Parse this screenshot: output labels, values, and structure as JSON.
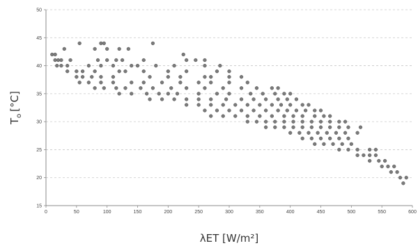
{
  "chart_data": {
    "type": "scatter",
    "title": "",
    "xlabel": "λET [W/m²]",
    "ylabel": "T",
    "ylabel_subscript": "o",
    "ylabel_unit": "[°C]",
    "xlim": [
      0,
      600
    ],
    "ylim": [
      15,
      50
    ],
    "xticks": [
      0,
      50,
      100,
      150,
      200,
      250,
      300,
      350,
      400,
      450,
      500,
      550,
      600
    ],
    "yticks": [
      15,
      20,
      25,
      30,
      35,
      40,
      45,
      50
    ],
    "grid": "horizontal-dashed",
    "colors": {
      "points": "#7a7a7a",
      "point_edge": "#555555",
      "axis": "#888888",
      "grid": "#c8c8c8"
    },
    "series": [
      {
        "points": [
          [
            10,
            42
          ],
          [
            15,
            42
          ],
          [
            30,
            43
          ],
          [
            55,
            44
          ],
          [
            90,
            44
          ],
          [
            95,
            44
          ],
          [
            80,
            43
          ],
          [
            100,
            43
          ],
          [
            120,
            43
          ],
          [
            135,
            43
          ],
          [
            175,
            44
          ],
          [
            225,
            42
          ],
          [
            15,
            41
          ],
          [
            20,
            41
          ],
          [
            25,
            41
          ],
          [
            40,
            41
          ],
          [
            85,
            41
          ],
          [
            100,
            41
          ],
          [
            115,
            41
          ],
          [
            125,
            41
          ],
          [
            160,
            41
          ],
          [
            230,
            41
          ],
          [
            245,
            41
          ],
          [
            260,
            41
          ],
          [
            18,
            40
          ],
          [
            25,
            40
          ],
          [
            35,
            40
          ],
          [
            70,
            40
          ],
          [
            90,
            40
          ],
          [
            110,
            40
          ],
          [
            140,
            40
          ],
          [
            150,
            40
          ],
          [
            180,
            40
          ],
          [
            210,
            40
          ],
          [
            260,
            40
          ],
          [
            285,
            40
          ],
          [
            35,
            39
          ],
          [
            50,
            39
          ],
          [
            60,
            39
          ],
          [
            80,
            39
          ],
          [
            120,
            39
          ],
          [
            130,
            39
          ],
          [
            160,
            39
          ],
          [
            200,
            39
          ],
          [
            230,
            39
          ],
          [
            280,
            39
          ],
          [
            300,
            39
          ],
          [
            50,
            38
          ],
          [
            60,
            38
          ],
          [
            75,
            38
          ],
          [
            90,
            38
          ],
          [
            110,
            38
          ],
          [
            170,
            38
          ],
          [
            200,
            38
          ],
          [
            220,
            38
          ],
          [
            260,
            38
          ],
          [
            270,
            38
          ],
          [
            300,
            38
          ],
          [
            320,
            38
          ],
          [
            55,
            37
          ],
          [
            70,
            37
          ],
          [
            90,
            37
          ],
          [
            110,
            37
          ],
          [
            140,
            37
          ],
          [
            160,
            37
          ],
          [
            190,
            37
          ],
          [
            220,
            37
          ],
          [
            250,
            37
          ],
          [
            270,
            37
          ],
          [
            300,
            37
          ],
          [
            330,
            37
          ],
          [
            80,
            36
          ],
          [
            95,
            36
          ],
          [
            115,
            36
          ],
          [
            130,
            36
          ],
          [
            155,
            36
          ],
          [
            175,
            36
          ],
          [
            205,
            36
          ],
          [
            230,
            36
          ],
          [
            260,
            36
          ],
          [
            290,
            36
          ],
          [
            320,
            36
          ],
          [
            345,
            36
          ],
          [
            370,
            36
          ],
          [
            380,
            36
          ],
          [
            120,
            35
          ],
          [
            140,
            35
          ],
          [
            165,
            35
          ],
          [
            185,
            35
          ],
          [
            200,
            35
          ],
          [
            215,
            35
          ],
          [
            250,
            35
          ],
          [
            280,
            35
          ],
          [
            300,
            35
          ],
          [
            335,
            35
          ],
          [
            355,
            35
          ],
          [
            375,
            35
          ],
          [
            390,
            35
          ],
          [
            400,
            35
          ],
          [
            170,
            34
          ],
          [
            190,
            34
          ],
          [
            210,
            34
          ],
          [
            230,
            34
          ],
          [
            250,
            34
          ],
          [
            270,
            34
          ],
          [
            295,
            34
          ],
          [
            320,
            34
          ],
          [
            340,
            34
          ],
          [
            360,
            34
          ],
          [
            380,
            34
          ],
          [
            395,
            34
          ],
          [
            410,
            34
          ],
          [
            230,
            33
          ],
          [
            250,
            33
          ],
          [
            270,
            33
          ],
          [
            290,
            33
          ],
          [
            310,
            33
          ],
          [
            330,
            33
          ],
          [
            350,
            33
          ],
          [
            370,
            33
          ],
          [
            385,
            33
          ],
          [
            400,
            33
          ],
          [
            420,
            33
          ],
          [
            430,
            33
          ],
          [
            260,
            32
          ],
          [
            280,
            32
          ],
          [
            300,
            32
          ],
          [
            320,
            32
          ],
          [
            340,
            32
          ],
          [
            360,
            32
          ],
          [
            380,
            32
          ],
          [
            395,
            32
          ],
          [
            410,
            32
          ],
          [
            425,
            32
          ],
          [
            440,
            32
          ],
          [
            450,
            32
          ],
          [
            270,
            31
          ],
          [
            290,
            31
          ],
          [
            310,
            31
          ],
          [
            330,
            31
          ],
          [
            350,
            31
          ],
          [
            370,
            31
          ],
          [
            390,
            31
          ],
          [
            405,
            31
          ],
          [
            420,
            31
          ],
          [
            440,
            31
          ],
          [
            455,
            31
          ],
          [
            465,
            31
          ],
          [
            330,
            30
          ],
          [
            345,
            30
          ],
          [
            360,
            30
          ],
          [
            375,
            30
          ],
          [
            390,
            30
          ],
          [
            405,
            30
          ],
          [
            420,
            30
          ],
          [
            435,
            30
          ],
          [
            450,
            30
          ],
          [
            465,
            30
          ],
          [
            480,
            30
          ],
          [
            490,
            30
          ],
          [
            360,
            29
          ],
          [
            375,
            29
          ],
          [
            390,
            29
          ],
          [
            405,
            29
          ],
          [
            420,
            29
          ],
          [
            435,
            29
          ],
          [
            450,
            29
          ],
          [
            465,
            29
          ],
          [
            480,
            29
          ],
          [
            495,
            29
          ],
          [
            515,
            29
          ],
          [
            400,
            28
          ],
          [
            415,
            28
          ],
          [
            430,
            28
          ],
          [
            445,
            28
          ],
          [
            460,
            28
          ],
          [
            475,
            28
          ],
          [
            490,
            28
          ],
          [
            510,
            28
          ],
          [
            420,
            27
          ],
          [
            435,
            27
          ],
          [
            450,
            27
          ],
          [
            465,
            27
          ],
          [
            480,
            27
          ],
          [
            495,
            27
          ],
          [
            440,
            26
          ],
          [
            455,
            26
          ],
          [
            470,
            26
          ],
          [
            485,
            26
          ],
          [
            500,
            26
          ],
          [
            480,
            25
          ],
          [
            495,
            25
          ],
          [
            510,
            25
          ],
          [
            530,
            25
          ],
          [
            540,
            25
          ],
          [
            510,
            24
          ],
          [
            520,
            24
          ],
          [
            530,
            24
          ],
          [
            540,
            24
          ],
          [
            530,
            23
          ],
          [
            545,
            23
          ],
          [
            555,
            23
          ],
          [
            550,
            22
          ],
          [
            560,
            22
          ],
          [
            570,
            22
          ],
          [
            565,
            21
          ],
          [
            575,
            21
          ],
          [
            580,
            20
          ],
          [
            590,
            20
          ],
          [
            585,
            19
          ]
        ]
      }
    ]
  }
}
